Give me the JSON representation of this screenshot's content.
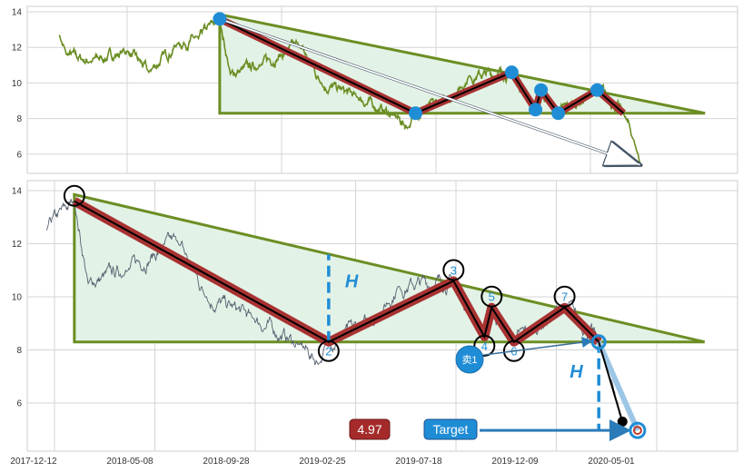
{
  "chart_data": [
    {
      "type": "line",
      "panel": "overview",
      "ylim": [
        5,
        14.3
      ],
      "yticks": [
        6,
        8,
        10,
        12,
        14
      ],
      "grid": true,
      "series_color": "#6b8e23",
      "anchors": [
        [
          "2017-04-01",
          12.7
        ],
        [
          "2017-04-15",
          11.6
        ],
        [
          "2017-06-01",
          11.2
        ],
        [
          "2017-08-14",
          11.8
        ],
        [
          "2017-09-25",
          10.6
        ],
        [
          "2017-11-20",
          12.2
        ],
        [
          "2018-01-01",
          12.5
        ],
        [
          "2018-02-12",
          13.6
        ],
        [
          "2018-03-05",
          10.5
        ],
        [
          "2018-05-01",
          11.0
        ],
        [
          "2018-07-19",
          12.1
        ],
        [
          "2018-09-01",
          10.0
        ],
        [
          "2018-11-10",
          9.2
        ],
        [
          "2019-01-20",
          8.2
        ],
        [
          "2019-02-20",
          7.5
        ],
        [
          "2019-03-06",
          8.3
        ],
        [
          "2019-05-10",
          9.0
        ],
        [
          "2019-06-20",
          10.4
        ],
        [
          "2019-09-12",
          10.6
        ],
        [
          "2019-10-29",
          8.5
        ],
        [
          "2019-11-09",
          9.6
        ],
        [
          "2019-12-13",
          8.3
        ],
        [
          "2020-02-28",
          9.6
        ],
        [
          "2020-03-20",
          9.2
        ],
        [
          "2020-04-20",
          8.3
        ],
        [
          "2020-05-10",
          6.8
        ],
        [
          "2020-05-26",
          5.3
        ]
      ]
    },
    {
      "type": "line",
      "panel": "detail",
      "ylim": [
        4.2,
        14.3
      ],
      "yticks": [
        6,
        8,
        10,
        12,
        14
      ],
      "x_tick_labels": [
        "2017-12-12",
        "2018-05-08",
        "2018-09-28",
        "2019-02-25",
        "2019-07-18",
        "2019-12-09",
        "2020-05-01"
      ],
      "grid": true,
      "series_color": "#556070",
      "start_date": "2018-01-01",
      "pattern_points": [
        {
          "label": "",
          "date": "2018-02-12",
          "price": 13.6
        },
        {
          "label": "2",
          "date": "2019-03-06",
          "price": 8.3
        },
        {
          "label": "3",
          "date": "2019-09-12",
          "price": 10.6
        },
        {
          "label": "4",
          "date": "2019-10-29",
          "price": 8.5
        },
        {
          "label": "5",
          "date": "2019-11-09",
          "price": 9.6
        },
        {
          "label": "6",
          "date": "2019-12-13",
          "price": 8.3
        },
        {
          "label": "7",
          "date": "2020-02-28",
          "price": 9.6
        }
      ],
      "breakout": {
        "date": "2020-04-20",
        "price": 8.3
      },
      "low": {
        "date": "2020-05-26",
        "price": 5.3
      },
      "target": {
        "date": "2020-06-18",
        "price": 4.97
      },
      "triangle": {
        "start_date": "2018-02-12",
        "top": 13.85,
        "base": 8.3,
        "apex_date": "2020-09-28"
      },
      "height_label": "H",
      "target_label": "Target",
      "target_value": "4.97",
      "sell_label": "卖1"
    }
  ],
  "colors": {
    "triangle_line": "#6b8e23",
    "triangle_fill": "#e3f2e6",
    "zigzag": "#a83232",
    "marker": "#1f8dd6",
    "target_box": "#a52a2a"
  }
}
